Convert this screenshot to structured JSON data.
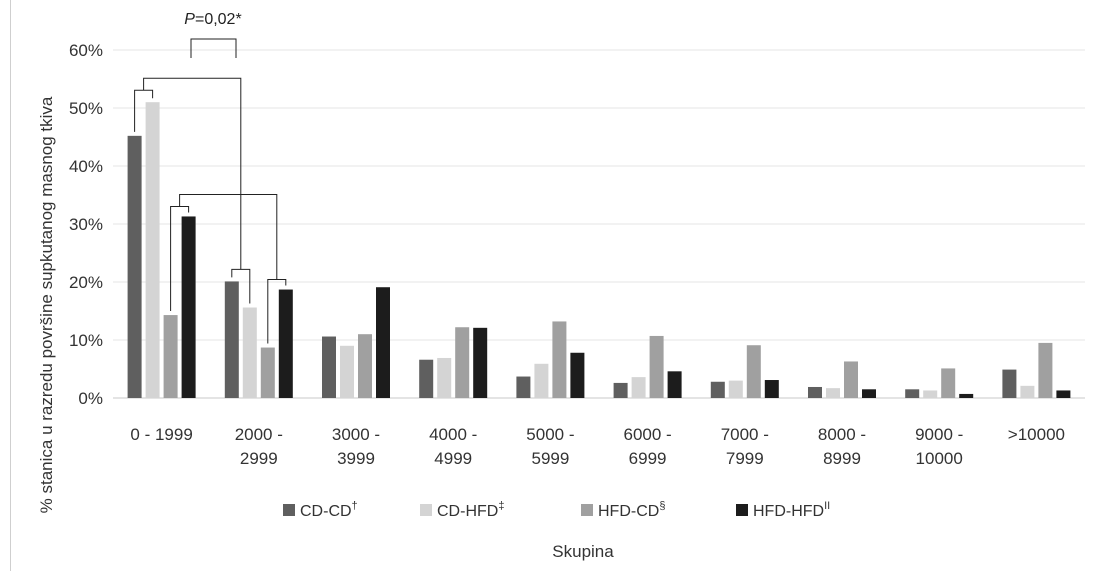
{
  "chart_data": {
    "type": "bar",
    "ylabel": "% stanica u razredu površine supkutanog masnog tkiva",
    "xlabel": "Skupina",
    "ylim": [
      0,
      60
    ],
    "y_ticks": [
      "0%",
      "10%",
      "20%",
      "30%",
      "40%",
      "50%",
      "60%"
    ],
    "grid": true,
    "legend_position": "bottom",
    "categories": [
      [
        "0 - 1999"
      ],
      [
        "2000 -",
        "2999"
      ],
      [
        "3000 -",
        "3999"
      ],
      [
        "4000 -",
        "4999"
      ],
      [
        "5000 -",
        "5999"
      ],
      [
        "6000 -",
        "6999"
      ],
      [
        "7000 -",
        "7999"
      ],
      [
        "8000 -",
        "8999"
      ],
      [
        "9000 -",
        "10000"
      ],
      [
        ">10000"
      ]
    ],
    "series": [
      {
        "name": "CD-CD",
        "sup": "†",
        "color": "#5f5f5f",
        "values": [
          45.2,
          20.1,
          10.6,
          6.6,
          3.7,
          2.6,
          2.8,
          1.9,
          1.5,
          4.9
        ]
      },
      {
        "name": "CD-HFD",
        "sup": "‡",
        "color": "#d4d4d4",
        "values": [
          51.0,
          15.6,
          9.0,
          6.9,
          5.9,
          3.6,
          3.0,
          1.7,
          1.3,
          2.1
        ]
      },
      {
        "name": "HFD-CD",
        "sup": "§",
        "color": "#a0a0a0",
        "values": [
          14.3,
          8.7,
          11.0,
          12.2,
          13.2,
          10.7,
          9.1,
          6.3,
          5.1,
          9.5
        ]
      },
      {
        "name": "HFD-HFD",
        "sup": "II",
        "color": "#1c1c1c",
        "values": [
          31.3,
          18.7,
          19.1,
          12.1,
          7.8,
          4.6,
          3.1,
          1.5,
          0.7,
          1.3
        ]
      }
    ],
    "annotations": [
      {
        "text_italic": "P",
        "text": "=0,02*"
      }
    ]
  }
}
